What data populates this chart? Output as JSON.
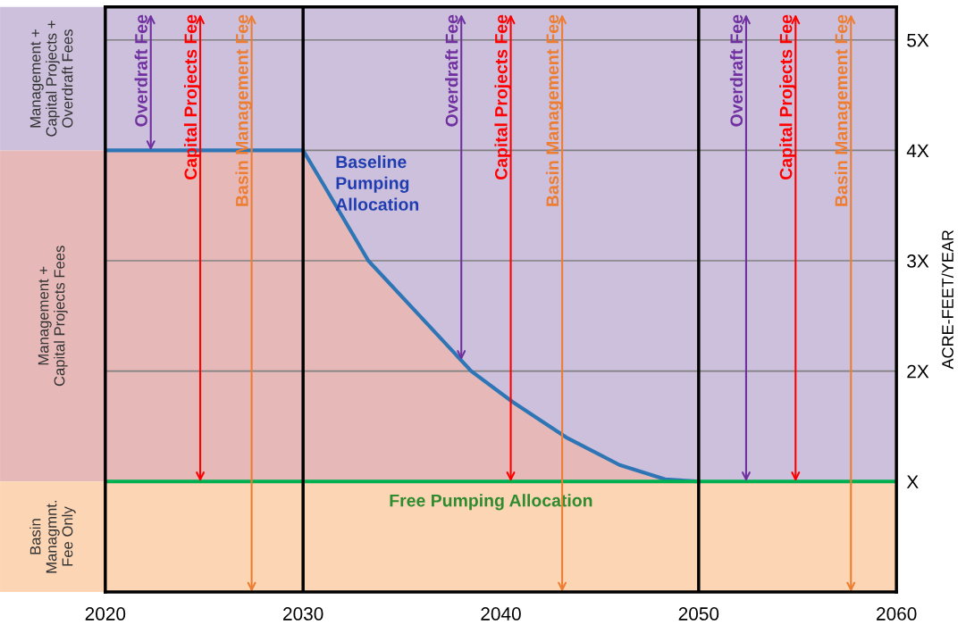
{
  "chart_data": {
    "type": "area",
    "ylabel": "ACRE-FEET/YEAR",
    "xlim": [
      2020,
      2060
    ],
    "xticks": [
      2020,
      2030,
      2040,
      2050,
      2060
    ],
    "ylim": [
      0,
      5.3
    ],
    "yticks": [
      {
        "value": 1,
        "label": "X"
      },
      {
        "value": 2,
        "label": "2X"
      },
      {
        "value": 3,
        "label": "3X"
      },
      {
        "value": 4,
        "label": "4X"
      },
      {
        "value": 5,
        "label": "5X"
      }
    ],
    "grid": "y",
    "series": [
      {
        "color": "#e6b9b8",
        "x": [
          2020,
          2030,
          2031,
          2033.3,
          2035.8,
          2038.5,
          2040.6,
          2043.3,
          2046,
          2048.3,
          2050
        ],
        "values": [
          4,
          4,
          3.7,
          3,
          2.52,
          2,
          1.72,
          1.4,
          1.15,
          1.02,
          1
        ]
      },
      {
        "name": "Baseline\nPumping\nAllocation",
        "type": "line",
        "color": "#2e75b6",
        "x": [
          2020,
          2030,
          2031,
          2033.3,
          2035.8,
          2038.5,
          2040.6,
          2043.3,
          2046,
          2048.3,
          2050
        ],
        "values": [
          4,
          4,
          3.7,
          3,
          2.52,
          2,
          1.72,
          1.4,
          1.15,
          1.02,
          1
        ]
      },
      {
        "name": "Free Pumping Allocation",
        "type": "line",
        "color": "#00b050",
        "x": [
          2020,
          2060
        ],
        "values": [
          1,
          1
        ]
      }
    ],
    "ref_lines": [
      {
        "axis": "x",
        "value": 2030,
        "color": "#000000"
      },
      {
        "axis": "x",
        "value": 2050,
        "color": "#000000"
      }
    ],
    "bands": [
      {
        "axis": "y",
        "from": 4,
        "to": 5.3,
        "label": "Management +\nCapital Projects +\nOverdraft Fees",
        "color": "#ccc0dc"
      },
      {
        "axis": "y",
        "from": 1,
        "to": 4,
        "label": "Management +\nCapital Projects Fees",
        "color": "#e6b9b8"
      },
      {
        "axis": "y",
        "from": 0,
        "to": 1,
        "label": "Basin\nManagmnt.\nFee Only",
        "color": "#fcd5b5"
      }
    ],
    "annotations": [
      {
        "text": "Overdraft Fee",
        "x": 2022.3,
        "y": 4
      },
      {
        "text": "Capital Projects Fee",
        "x": 2024.8,
        "y": 1
      },
      {
        "text": "Basin Management Fee",
        "x": 2027.4,
        "y": 0
      },
      {
        "text": "Overdraft Fee",
        "x": 2038.0,
        "y": 2.1
      },
      {
        "text": "Capital Projects Fee",
        "x": 2040.5,
        "y": 1
      },
      {
        "text": "Basin Management Fee",
        "x": 2043.1,
        "y": 0
      },
      {
        "text": "Overdraft Fee",
        "x": 2052.4,
        "y": 1
      },
      {
        "text": "Capital Projects Fee",
        "x": 2054.9,
        "y": 1
      },
      {
        "text": "Basin Management Fee",
        "x": 2057.7,
        "y": 0
      }
    ]
  }
}
